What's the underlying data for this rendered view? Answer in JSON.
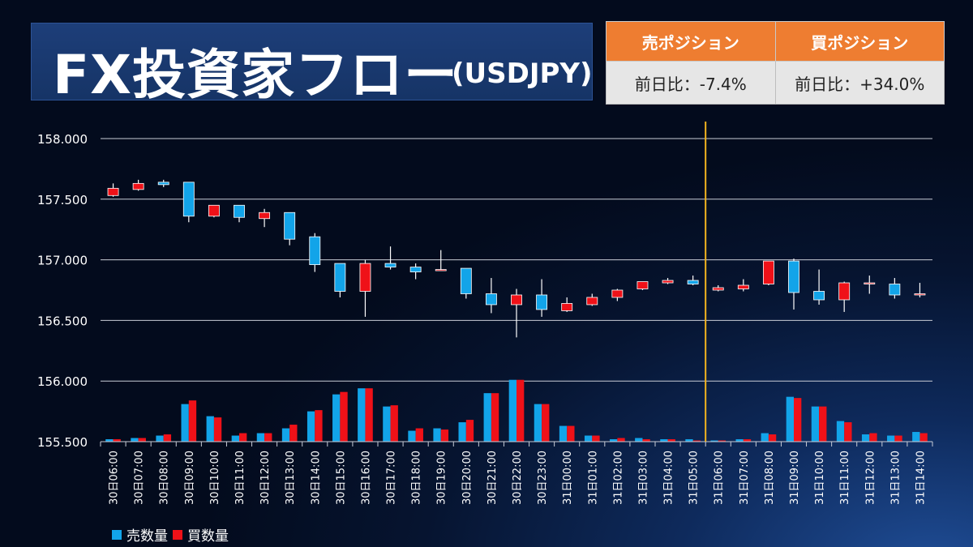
{
  "header": {
    "title": "FX投資家フロー",
    "subtitle": "(USDJPY)"
  },
  "positions": {
    "sell_label": "売ポジション",
    "buy_label": "買ポジション",
    "sell_change": "前日比：-7.4%",
    "buy_change": "前日比：+34.0%"
  },
  "colors": {
    "sell": "#12a4e9",
    "buy": "#ef1118",
    "divider": "#f3b41f",
    "header_orange": "#ee7d31"
  },
  "chart_data": {
    "type": "candlestick",
    "ylim": [
      155.5,
      158.0
    ],
    "yticks": [
      "158.000",
      "157.500",
      "157.000",
      "156.500",
      "156.000",
      "155.500"
    ],
    "ytick_values": [
      158.0,
      157.5,
      157.0,
      156.5,
      156.0,
      155.5
    ],
    "grid": true,
    "categories": [
      "30日06:00",
      "30日07:00",
      "30日08:00",
      "30日09:00",
      "30日10:00",
      "30日11:00",
      "30日12:00",
      "30日13:00",
      "30日14:00",
      "30日15:00",
      "30日16:00",
      "30日17:00",
      "30日18:00",
      "30日19:00",
      "30日20:00",
      "30日21:00",
      "30日22:00",
      "30日23:00",
      "31日00:00",
      "31日01:00",
      "31日02:00",
      "31日03:00",
      "31日04:00",
      "31日05:00",
      "31日06:00",
      "31日07:00",
      "31日08:00",
      "31日09:00",
      "31日10:00",
      "31日11:00",
      "31日12:00",
      "31日13:00",
      "31日14:00"
    ],
    "candles": [
      {
        "open": 157.53,
        "high": 157.63,
        "low": 157.52,
        "close": 157.59
      },
      {
        "open": 157.58,
        "high": 157.66,
        "low": 157.57,
        "close": 157.63
      },
      {
        "open": 157.64,
        "high": 157.66,
        "low": 157.6,
        "close": 157.62
      },
      {
        "open": 157.64,
        "high": 157.64,
        "low": 157.31,
        "close": 157.36
      },
      {
        "open": 157.36,
        "high": 157.44,
        "low": 157.35,
        "close": 157.45
      },
      {
        "open": 157.45,
        "high": 157.45,
        "low": 157.31,
        "close": 157.35
      },
      {
        "open": 157.34,
        "high": 157.42,
        "low": 157.27,
        "close": 157.39
      },
      {
        "open": 157.39,
        "high": 157.39,
        "low": 157.12,
        "close": 157.17
      },
      {
        "open": 157.19,
        "high": 157.22,
        "low": 156.9,
        "close": 156.96
      },
      {
        "open": 156.97,
        "high": 156.97,
        "low": 156.69,
        "close": 156.74
      },
      {
        "open": 156.74,
        "high": 157.0,
        "low": 156.53,
        "close": 156.97
      },
      {
        "open": 156.97,
        "high": 157.11,
        "low": 156.92,
        "close": 156.94
      },
      {
        "open": 156.94,
        "high": 156.97,
        "low": 156.84,
        "close": 156.9
      },
      {
        "open": 156.91,
        "high": 157.08,
        "low": 156.91,
        "close": 156.92
      },
      {
        "open": 156.93,
        "high": 156.93,
        "low": 156.68,
        "close": 156.72
      },
      {
        "open": 156.72,
        "high": 156.85,
        "low": 156.56,
        "close": 156.63
      },
      {
        "open": 156.63,
        "high": 156.76,
        "low": 156.36,
        "close": 156.71
      },
      {
        "open": 156.71,
        "high": 156.84,
        "low": 156.53,
        "close": 156.59
      },
      {
        "open": 156.58,
        "high": 156.69,
        "low": 156.57,
        "close": 156.64
      },
      {
        "open": 156.63,
        "high": 156.72,
        "low": 156.62,
        "close": 156.69
      },
      {
        "open": 156.69,
        "high": 156.76,
        "low": 156.66,
        "close": 156.75
      },
      {
        "open": 156.76,
        "high": 156.82,
        "low": 156.75,
        "close": 156.82
      },
      {
        "open": 156.81,
        "high": 156.85,
        "low": 156.8,
        "close": 156.83
      },
      {
        "open": 156.83,
        "high": 156.87,
        "low": 156.79,
        "close": 156.8
      },
      {
        "open": 156.75,
        "high": 156.79,
        "low": 156.74,
        "close": 156.77
      },
      {
        "open": 156.76,
        "high": 156.84,
        "low": 156.74,
        "close": 156.79
      },
      {
        "open": 156.8,
        "high": 156.99,
        "low": 156.79,
        "close": 156.99
      },
      {
        "open": 156.99,
        "high": 157.01,
        "low": 156.59,
        "close": 156.73
      },
      {
        "open": 156.74,
        "high": 156.92,
        "low": 156.63,
        "close": 156.67
      },
      {
        "open": 156.67,
        "high": 156.82,
        "low": 156.57,
        "close": 156.81
      },
      {
        "open": 156.8,
        "high": 156.87,
        "low": 156.72,
        "close": 156.81
      },
      {
        "open": 156.8,
        "high": 156.85,
        "low": 156.68,
        "close": 156.71
      },
      {
        "open": 156.71,
        "high": 156.81,
        "low": 156.69,
        "close": 156.72
      }
    ],
    "series": [
      {
        "name": "売数量",
        "color": "#12a4e9",
        "values": [
          0.02,
          0.03,
          0.05,
          0.31,
          0.21,
          0.05,
          0.07,
          0.11,
          0.25,
          0.39,
          0.44,
          0.29,
          0.09,
          0.11,
          0.16,
          0.4,
          0.51,
          0.31,
          0.13,
          0.05,
          0.02,
          0.03,
          0.02,
          0.02,
          0.01,
          0.02,
          0.07,
          0.37,
          0.29,
          0.17,
          0.06,
          0.05,
          0.08
        ]
      },
      {
        "name": "買数量",
        "color": "#ef1118",
        "values": [
          0.02,
          0.03,
          0.06,
          0.34,
          0.2,
          0.07,
          0.07,
          0.14,
          0.26,
          0.41,
          0.44,
          0.3,
          0.11,
          0.1,
          0.18,
          0.4,
          0.51,
          0.31,
          0.13,
          0.05,
          0.03,
          0.02,
          0.02,
          0.01,
          0.01,
          0.02,
          0.06,
          0.36,
          0.29,
          0.16,
          0.07,
          0.05,
          0.07
        ]
      }
    ],
    "divider_after_category": "31日05:00"
  }
}
